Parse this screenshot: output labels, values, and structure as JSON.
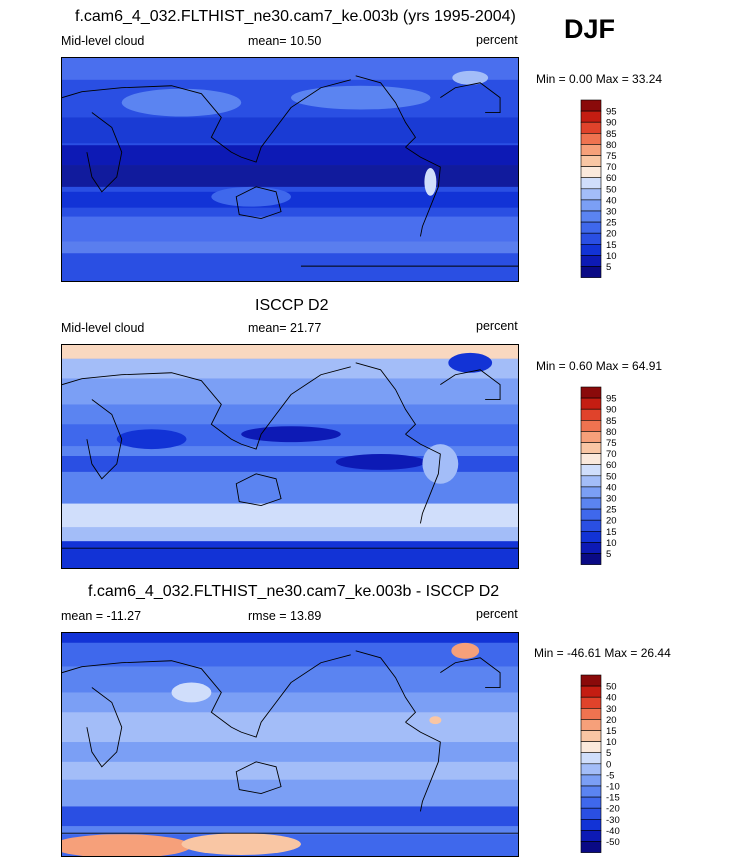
{
  "season": "DJF",
  "panels": [
    {
      "title": "f.cam6_4_032.FLTHIST_ne30.cam7_ke.003b (yrs 1995-2004)",
      "left_label": "Mid-level cloud",
      "center_label": "mean=  10.50",
      "right_label": "percent",
      "minmax": "Min =   0.00 Max =  33.24"
    },
    {
      "title": "ISCCP D2",
      "left_label": "Mid-level cloud",
      "center_label": "mean=  21.77",
      "right_label": "percent",
      "minmax": "Min =   0.60 Max =  64.91"
    },
    {
      "title": "f.cam6_4_032.FLTHIST_ne30.cam7_ke.003b - ISCCP D2",
      "left_label": "mean = -11.27",
      "center_label": "rmse =  13.89",
      "right_label": "percent",
      "minmax": "Min = -46.61 Max =  26.44"
    }
  ],
  "chart_data": [
    {
      "type": "heatmap",
      "title": "f.cam6_4_032.FLTHIST_ne30.cam7_ke.003b (yrs 1995-2004)",
      "variable": "Mid-level cloud",
      "units": "percent",
      "mean": 10.5,
      "min": 0.0,
      "max": 33.24,
      "colorbar_levels": [
        5,
        10,
        15,
        20,
        25,
        30,
        40,
        50,
        60,
        70,
        75,
        80,
        85,
        90,
        95
      ],
      "colorbar_labels": [
        "95",
        "90",
        "85",
        "80",
        "75",
        "70",
        "60",
        "50",
        "40",
        "30",
        "25",
        "20",
        "15",
        "10",
        "5"
      ],
      "colors": [
        "#0a0a85",
        "#0d1ab5",
        "#1233d6",
        "#2a4fe3",
        "#3f68ec",
        "#5b84f1",
        "#7b9ff5",
        "#a3bdf8",
        "#d0defb",
        "#fbe9dc",
        "#f9c6a4",
        "#f6a07a",
        "#ef7350",
        "#e0432b",
        "#c41d12",
        "#8a0a0a"
      ]
    },
    {
      "type": "heatmap",
      "title": "ISCCP D2",
      "variable": "Mid-level cloud",
      "units": "percent",
      "mean": 21.77,
      "min": 0.6,
      "max": 64.91,
      "colorbar_levels": [
        5,
        10,
        15,
        20,
        25,
        30,
        40,
        50,
        60,
        70,
        75,
        80,
        85,
        90,
        95
      ],
      "colorbar_labels": [
        "95",
        "90",
        "85",
        "80",
        "75",
        "70",
        "60",
        "50",
        "40",
        "30",
        "25",
        "20",
        "15",
        "10",
        "5"
      ],
      "colors": [
        "#0a0a85",
        "#0d1ab5",
        "#1233d6",
        "#2a4fe3",
        "#3f68ec",
        "#5b84f1",
        "#7b9ff5",
        "#a3bdf8",
        "#d0defb",
        "#fbe9dc",
        "#f9c6a4",
        "#f6a07a",
        "#ef7350",
        "#e0432b",
        "#c41d12",
        "#8a0a0a"
      ]
    },
    {
      "type": "heatmap",
      "title": "f.cam6_4_032.FLTHIST_ne30.cam7_ke.003b - ISCCP D2",
      "units": "percent",
      "mean": -11.27,
      "rmse": 13.89,
      "min": -46.61,
      "max": 26.44,
      "colorbar_levels": [
        -50,
        -40,
        -30,
        -20,
        -15,
        -10,
        -5,
        0,
        5,
        10,
        15,
        20,
        30,
        40,
        50
      ],
      "colorbar_labels": [
        "50",
        "40",
        "30",
        "20",
        "15",
        "10",
        "5",
        "0",
        "-5",
        "-10",
        "-15",
        "-20",
        "-30",
        "-40",
        "-50"
      ],
      "colors": [
        "#0a0a85",
        "#0d1ab5",
        "#1233d6",
        "#2a4fe3",
        "#3f68ec",
        "#5b84f1",
        "#7b9ff5",
        "#a3bdf8",
        "#d0defb",
        "#fbe9dc",
        "#f9c6a4",
        "#f6a07a",
        "#ef7350",
        "#e0432b",
        "#c41d12",
        "#8a0a0a"
      ]
    }
  ]
}
